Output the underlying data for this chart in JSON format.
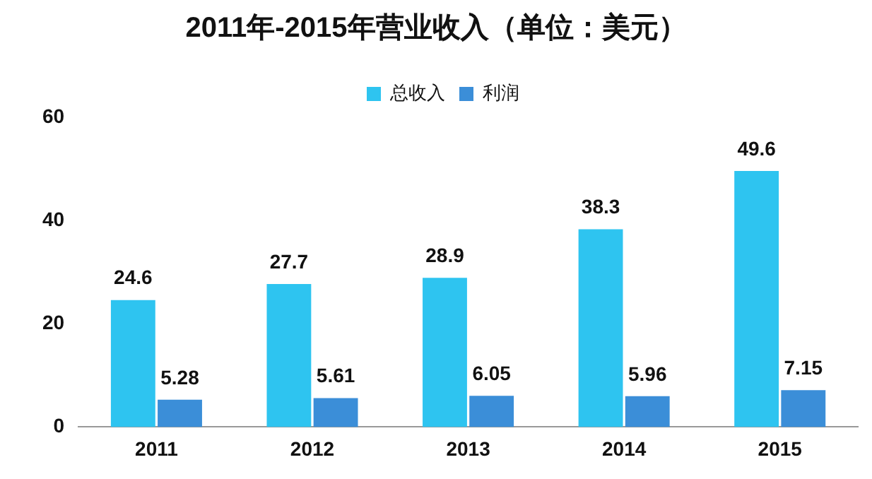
{
  "chart_data": {
    "type": "bar",
    "title": "2011年-2015年营业收入（单位：美元）",
    "categories": [
      "2011",
      "2012",
      "2013",
      "2014",
      "2015"
    ],
    "series": [
      {
        "name": "总收入",
        "color": "#2ec4f0",
        "values": [
          24.6,
          27.7,
          28.9,
          38.3,
          49.6
        ]
      },
      {
        "name": "利润",
        "color": "#3b8ed8",
        "values": [
          5.28,
          5.61,
          6.05,
          5.96,
          7.15
        ]
      }
    ],
    "ylim": [
      0,
      60
    ],
    "yticks": [
      0,
      20,
      40,
      60
    ],
    "grid": false,
    "legend": "top",
    "data_labels": true
  }
}
